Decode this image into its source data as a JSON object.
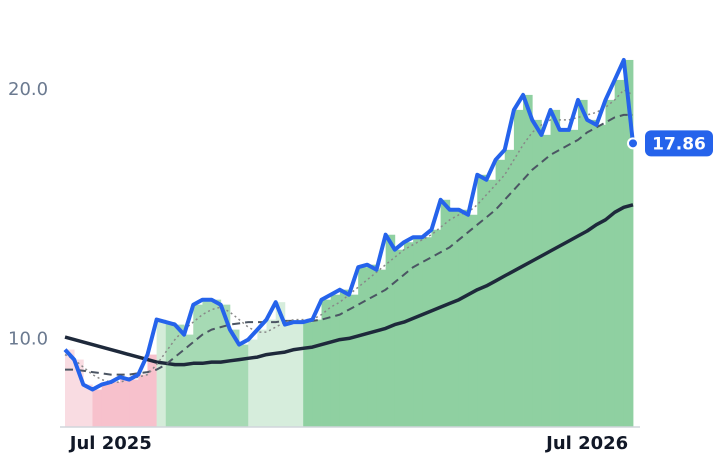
{
  "chart_data": {
    "type": "line",
    "categories": [
      null,
      null,
      null,
      null,
      null,
      "Jul 2025",
      null,
      null,
      null,
      null,
      null,
      null,
      null,
      null,
      null,
      null,
      null,
      null,
      null,
      null,
      null,
      null,
      null,
      null,
      null,
      null,
      null,
      null,
      null,
      null,
      null,
      null,
      null,
      null,
      null,
      null,
      null,
      null,
      null,
      null,
      null,
      null,
      null,
      null,
      null,
      null,
      null,
      null,
      null,
      null,
      null,
      null,
      null,
      null,
      null,
      null,
      null,
      "Jul 2026",
      null,
      null,
      null,
      null,
      null
    ],
    "ylim": [
      6.5,
      22.8
    ],
    "yticks": [
      {
        "value": 10,
        "label": "10.0"
      },
      {
        "value": 20,
        "label": "20.0"
      }
    ],
    "grid": false,
    "area_series": 0,
    "bands": [
      {
        "from": 0,
        "to": 3,
        "color": "#f9dce2"
      },
      {
        "from": 3,
        "to": 10,
        "color": "#f7c1cc"
      },
      {
        "from": 10,
        "to": 11,
        "color": "#d4ecd9"
      },
      {
        "from": 11,
        "to": 20,
        "color": "#a6dab4"
      },
      {
        "from": 20,
        "to": 26,
        "color": "#d6eddc"
      },
      {
        "from": 26,
        "to": 62,
        "color": "#8fd0a1"
      }
    ],
    "last_value_label": true,
    "series": [
      {
        "color": "#2563eb",
        "width": 4,
        "dash": "none",
        "values": [
          9.6,
          9.2,
          8.2,
          8.0,
          8.2,
          8.3,
          8.5,
          8.4,
          8.6,
          9.4,
          10.8,
          10.7,
          10.6,
          10.2,
          11.4,
          11.6,
          11.6,
          11.4,
          10.4,
          9.8,
          10.0,
          10.4,
          10.8,
          11.5,
          10.6,
          10.7,
          10.7,
          10.8,
          11.6,
          11.8,
          12.0,
          11.8,
          12.9,
          13.0,
          12.8,
          14.2,
          13.6,
          13.9,
          14.1,
          14.1,
          14.4,
          15.6,
          15.2,
          15.2,
          15.0,
          16.6,
          16.4,
          17.2,
          17.6,
          19.2,
          19.8,
          18.8,
          18.2,
          19.2,
          18.4,
          18.4,
          19.6,
          18.8,
          18.6,
          19.6,
          20.4,
          21.2,
          17.86
        ]
      },
      {
        "color": "#888888",
        "width": 1.5,
        "dash": "2 3",
        "values": [
          9.4,
          9.2,
          8.9,
          8.6,
          8.4,
          8.3,
          8.3,
          8.4,
          8.5,
          8.6,
          9.0,
          9.5,
          10.0,
          10.4,
          10.7,
          11.0,
          11.2,
          11.3,
          11.1,
          10.8,
          10.5,
          10.3,
          10.3,
          10.5,
          10.7,
          10.8,
          10.8,
          10.8,
          11.0,
          11.3,
          11.5,
          11.8,
          12.1,
          12.4,
          12.7,
          13.0,
          13.3,
          13.6,
          13.8,
          14.0,
          14.2,
          14.5,
          14.8,
          15.0,
          15.1,
          15.4,
          15.8,
          16.2,
          16.6,
          17.2,
          17.8,
          18.3,
          18.6,
          18.8,
          18.8,
          18.8,
          18.9,
          19.0,
          19.1,
          19.3,
          19.6,
          20.0,
          19.8
        ]
      },
      {
        "color": "#4b5563",
        "width": 2,
        "dash": "8 5",
        "values": [
          8.8,
          8.8,
          8.75,
          8.7,
          8.65,
          8.6,
          8.6,
          8.6,
          8.65,
          8.7,
          8.8,
          9.0,
          9.3,
          9.6,
          9.9,
          10.2,
          10.4,
          10.5,
          10.6,
          10.65,
          10.7,
          10.7,
          10.7,
          10.7,
          10.75,
          10.75,
          10.7,
          10.75,
          10.8,
          10.9,
          11.0,
          11.2,
          11.4,
          11.6,
          11.8,
          12.0,
          12.3,
          12.6,
          12.9,
          13.1,
          13.3,
          13.5,
          13.7,
          14.0,
          14.3,
          14.6,
          14.9,
          15.2,
          15.6,
          16.0,
          16.4,
          16.8,
          17.1,
          17.4,
          17.6,
          17.8,
          18.0,
          18.3,
          18.5,
          18.7,
          18.9,
          19.0,
          19.0
        ]
      },
      {
        "color": "#1e293b",
        "width": 3.5,
        "dash": "none",
        "values": [
          10.1,
          10.0,
          9.9,
          9.8,
          9.7,
          9.6,
          9.5,
          9.4,
          9.3,
          9.2,
          9.1,
          9.05,
          9.0,
          9.0,
          9.05,
          9.05,
          9.1,
          9.1,
          9.15,
          9.2,
          9.25,
          9.3,
          9.4,
          9.45,
          9.5,
          9.6,
          9.65,
          9.7,
          9.8,
          9.9,
          10.0,
          10.05,
          10.15,
          10.25,
          10.35,
          10.45,
          10.6,
          10.7,
          10.85,
          11.0,
          11.15,
          11.3,
          11.45,
          11.6,
          11.8,
          12.0,
          12.15,
          12.35,
          12.55,
          12.75,
          12.95,
          13.15,
          13.35,
          13.55,
          13.75,
          13.95,
          14.15,
          14.35,
          14.6,
          14.8,
          15.1,
          15.3,
          15.4
        ]
      }
    ]
  }
}
